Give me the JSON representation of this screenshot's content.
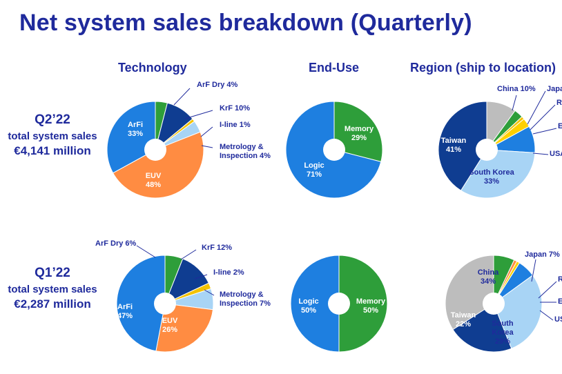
{
  "page": {
    "title": "Net system sales breakdown (Quarterly)",
    "columns": [
      "Technology",
      "End-Use",
      "Region (ship to location)"
    ]
  },
  "rows": [
    {
      "quarter": "Q2’22",
      "line1": "total system sales",
      "line2": "€4,141 million"
    },
    {
      "quarter": "Q1’22",
      "line1": "total system sales",
      "line2": "€2,287 million"
    }
  ],
  "chart_data": [
    {
      "type": "pie",
      "title": "Technology",
      "period": "Q2’22",
      "slices": [
        {
          "label": "ArF Dry",
          "value": 4,
          "color": "#2e9e3a",
          "text": "ArF Dry 4%"
        },
        {
          "label": "KrF",
          "value": 10,
          "color": "#0f3d91",
          "text": "KrF 10%"
        },
        {
          "label": "I-line",
          "value": 1,
          "color": "#f2c200",
          "text": "I-line 1%"
        },
        {
          "label": "Metrology & Inspection",
          "value": 4,
          "color": "#a8d4f5",
          "text": "Metrology & Inspection 4%"
        },
        {
          "label": "EUV",
          "value": 48,
          "color": "#ff8c42",
          "text": "EUV 48%"
        },
        {
          "label": "ArFi",
          "value": 33,
          "color": "#1e7fe0",
          "text": "ArFi 33%"
        }
      ]
    },
    {
      "type": "pie",
      "title": "End-Use",
      "period": "Q2’22",
      "slices": [
        {
          "label": "Memory",
          "value": 29,
          "color": "#2e9e3a",
          "text": "Memory 29%"
        },
        {
          "label": "Logic",
          "value": 71,
          "color": "#1e7fe0",
          "text": "Logic 71%"
        }
      ]
    },
    {
      "type": "pie",
      "title": "Region (ship to location)",
      "period": "Q2’22",
      "slices": [
        {
          "label": "China",
          "value": 10,
          "color": "#bdbdbd",
          "text": "China 10%"
        },
        {
          "label": "Japan",
          "value": 3,
          "color": "#2e9e3a",
          "text": "Japa"
        },
        {
          "label": "Rest of Asia",
          "value": 1,
          "color": "#f2c200",
          "text": "R"
        },
        {
          "label": "EMEA",
          "value": 3,
          "color": "#ffd000",
          "text": "E"
        },
        {
          "label": "USA",
          "value": 9,
          "color": "#1e7fe0",
          "text": "USA"
        },
        {
          "label": "South Korea",
          "value": 33,
          "color": "#a8d4f5",
          "text": "South Korea 33%"
        },
        {
          "label": "Taiwan",
          "value": 41,
          "color": "#0f3d91",
          "text": "Taiwan 41%"
        }
      ]
    },
    {
      "type": "pie",
      "title": "Technology",
      "period": "Q1’22",
      "slices": [
        {
          "label": "ArF Dry",
          "value": 6,
          "color": "#2e9e3a",
          "text": "ArF Dry 6%"
        },
        {
          "label": "KrF",
          "value": 12,
          "color": "#0f3d91",
          "text": "KrF 12%"
        },
        {
          "label": "I-line",
          "value": 2,
          "color": "#f2c200",
          "text": "I-line 2%"
        },
        {
          "label": "Metrology & Inspection",
          "value": 7,
          "color": "#a8d4f5",
          "text": "Metrology & Inspection 7%"
        },
        {
          "label": "EUV",
          "value": 26,
          "color": "#ff8c42",
          "text": "EUV 26%"
        },
        {
          "label": "ArFi",
          "value": 47,
          "color": "#1e7fe0",
          "text": "ArFi 47%"
        }
      ]
    },
    {
      "type": "pie",
      "title": "End-Use",
      "period": "Q1’22",
      "slices": [
        {
          "label": "Memory",
          "value": 50,
          "color": "#2e9e3a",
          "text": "Memory 50%"
        },
        {
          "label": "Logic",
          "value": 50,
          "color": "#1e7fe0",
          "text": "Logic 50%"
        }
      ]
    },
    {
      "type": "pie",
      "title": "Region (ship to location)",
      "period": "Q1’22",
      "slices": [
        {
          "label": "Japan",
          "value": 7,
          "color": "#2e9e3a",
          "text": "Japan 7%"
        },
        {
          "label": "Rest of Asia",
          "value": 1,
          "color": "#ff8c42",
          "text": "R"
        },
        {
          "label": "EMEA",
          "value": 1,
          "color": "#ffd000",
          "text": "E"
        },
        {
          "label": "USA",
          "value": 6,
          "color": "#1e7fe0",
          "text": "US"
        },
        {
          "label": "South Korea",
          "value": 29,
          "color": "#a8d4f5",
          "text": "South Korea 29%"
        },
        {
          "label": "Taiwan",
          "value": 22,
          "color": "#0f3d91",
          "text": "Taiwan 22%"
        },
        {
          "label": "China",
          "value": 34,
          "color": "#bdbdbd",
          "text": "China 34%"
        }
      ]
    }
  ]
}
